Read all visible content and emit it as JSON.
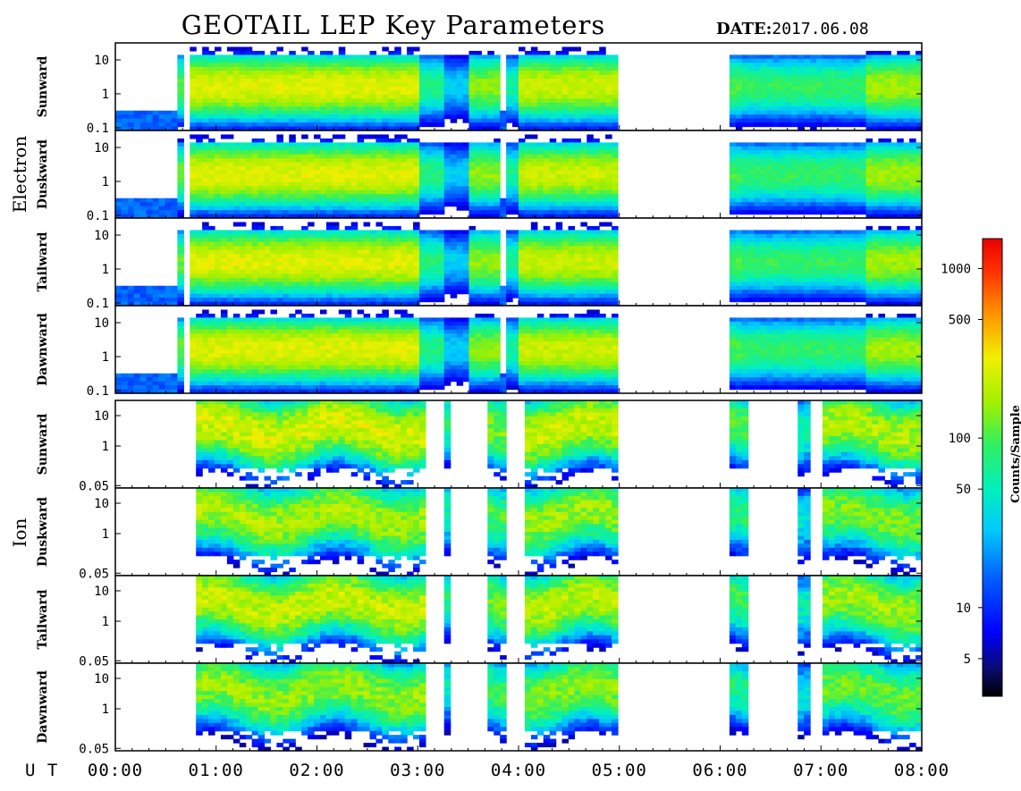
{
  "header": {
    "title": "GEOTAIL LEP Key Parameters",
    "date_label": "DATE:",
    "date_value": "2017.06.08"
  },
  "groups": [
    {
      "label": "Electron"
    },
    {
      "label": "Ion"
    }
  ],
  "x_axis": {
    "label": "U T",
    "ticks": [
      "00:00",
      "01:00",
      "02:00",
      "03:00",
      "04:00",
      "05:00",
      "06:00",
      "07:00",
      "08:00"
    ]
  },
  "colorbar": {
    "label": "Counts/Sample",
    "ticks": [
      "1000",
      "500",
      "100",
      "50",
      "10",
      "5"
    ],
    "range": [
      3,
      1500
    ],
    "scale": "log"
  },
  "chart_data": {
    "type": "heatmap",
    "title": "GEOTAIL LEP Key Parameters",
    "date": "2017.06.08",
    "x_range_hours": [
      0,
      8
    ],
    "data_gaps_hours": [
      [
        5.0,
        6.08
      ]
    ],
    "panels": [
      {
        "group": "Electron",
        "name": "Sunward",
        "yscale": "log",
        "y_ticks": [
          "10",
          "1",
          "0.1"
        ],
        "peak_counts": 250
      },
      {
        "group": "Electron",
        "name": "Duskward",
        "yscale": "log",
        "y_ticks": [
          "10",
          "1",
          "0.1"
        ],
        "peak_counts": 250
      },
      {
        "group": "Electron",
        "name": "Tailward",
        "yscale": "log",
        "y_ticks": [
          "10",
          "1",
          "0.1"
        ],
        "peak_counts": 250
      },
      {
        "group": "Electron",
        "name": "Dawnward",
        "yscale": "log",
        "y_ticks": [
          "10",
          "1",
          "0.1"
        ],
        "peak_counts": 250
      },
      {
        "group": "Ion",
        "name": "Sunward",
        "yscale": "log",
        "y_ticks": [
          "10",
          "1",
          "0.05"
        ],
        "peak_counts": 250
      },
      {
        "group": "Ion",
        "name": "Duskward",
        "yscale": "log",
        "y_ticks": [
          "10",
          "1",
          "0.05"
        ],
        "peak_counts": 180
      },
      {
        "group": "Ion",
        "name": "Tailward",
        "yscale": "log",
        "y_ticks": [
          "10",
          "1",
          "0.05"
        ],
        "peak_counts": 220
      },
      {
        "group": "Ion",
        "name": "Dawnward",
        "yscale": "log",
        "y_ticks": [
          "10",
          "1",
          "0.05"
        ],
        "peak_counts": 160
      }
    ]
  }
}
